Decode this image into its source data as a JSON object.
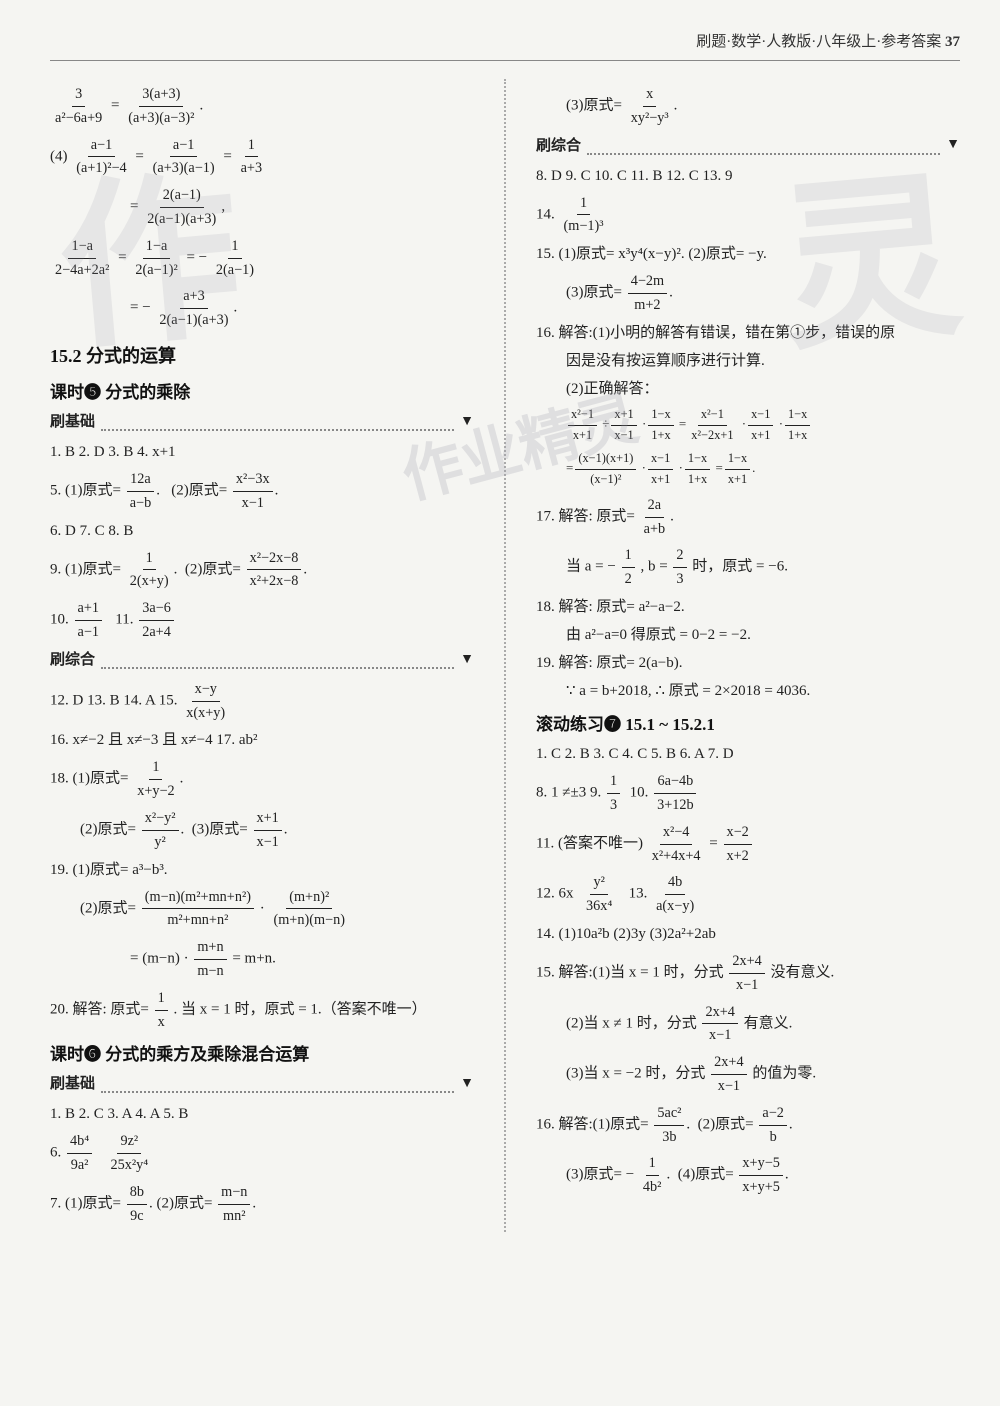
{
  "header": {
    "text": "刷题·数学·人教版·八年级上·参考答案",
    "page": "37"
  },
  "left": {
    "eq1_l_num": "3",
    "eq1_l_den": "a²−6a+9",
    "eq1_r_num": "3(a+3)",
    "eq1_r_den": "(a+3)(a−3)²",
    "q4_label": "(4)",
    "q4a_num": "a−1",
    "q4a_den": "(a+1)²−4",
    "q4b_num": "a−1",
    "q4b_den": "(a+3)(a−1)",
    "q4c_num": "1",
    "q4c_den": "a+3",
    "q4d_num": "2(a−1)",
    "q4d_den": "2(a−1)(a+3)",
    "q4e_lnum": "1−a",
    "q4e_lden": "2−4a+2a²",
    "q4e_mnum": "1−a",
    "q4e_mden": "2(a−1)²",
    "q4e_rnum": "1",
    "q4e_rden": "2(a−1)",
    "q4f_num": "a+3",
    "q4f_den": "2(a−1)(a+3)",
    "sec152": "15.2  分式的运算",
    "keshi5": "课时❺  分式的乘除",
    "shuajichu": "刷基础",
    "row1": "1. B   2. D   3. B   4. x+1",
    "q5_label": "5.",
    "q5_1l": "(1)原式=",
    "q5_1num": "12a",
    "q5_1den": "a−b",
    "q5_2l": "(2)原式=",
    "q5_2num": "x²−3x",
    "q5_2den": "x−1",
    "row2": "6. D   7. C   8. B",
    "q9_label": "9.",
    "q9_1l": "(1)原式=",
    "q9_1num": "1",
    "q9_1den": "2(x+y)",
    "q9_2l": "(2)原式=",
    "q9_2num": "x²−2x−8",
    "q9_2den": "x²+2x−8",
    "q10_label": "10.",
    "q10_num": "a+1",
    "q10_den": "a−1",
    "q11_label": "11.",
    "q11_num": "3a−6",
    "q11_den": "2a+4",
    "shuazonghe": "刷综合",
    "row3_a": "12. D   13. B   14. A   15.",
    "q15_num": "x−y",
    "q15_den": "x(x+y)",
    "row4": "16. x≠−2 且 x≠−3 且 x≠−4   17. ab²",
    "q18_label": "18.",
    "q18_1l": "(1)原式=",
    "q18_1num": "1",
    "q18_1den": "x+y−2",
    "q18_2l": "(2)原式=",
    "q18_2num": "x²−y²",
    "q18_2den": "y²",
    "q18_3l": "(3)原式=",
    "q18_3num": "x+1",
    "q18_3den": "x−1",
    "q19_label": "19.",
    "q19_1": "(1)原式= a³−b³.",
    "q19_2l": "(2)原式=",
    "q19_2anum": "(m−n)(m²+mn+n²)",
    "q19_2aden": "m²+mn+n²",
    "q19_2bnum": "(m+n)²",
    "q19_2bden": "(m+n)(m−n)",
    "q19_3a": "= (m−n) ·",
    "q19_3num": "m+n",
    "q19_3den": "m−n",
    "q19_3b": "= m+n.",
    "q20_label": "20. 解答:",
    "q20_a": "原式=",
    "q20_num": "1",
    "q20_den": "x",
    "q20_b": ". 当 x = 1 时，原式 = 1.（答案不唯一）",
    "keshi6": "课时❻  分式的乘方及乘除混合运算",
    "row5": "1. B   2. C   3. A   4. A   5. B",
    "q6_label": "6.",
    "q6_anum": "4b⁴",
    "q6_aden": "9a²",
    "q6_bnum": "9z²",
    "q6_bden": "25x²y⁴",
    "q7_label": "7.",
    "q7_1l": "(1)原式=",
    "q7_1num": "8b",
    "q7_1den": "9c",
    "q7_2l": "(2)原式=",
    "q7_2num": "m−n",
    "q7_2den": "mn²"
  },
  "right": {
    "q3l": "(3)原式=",
    "q3num": "x",
    "q3den": "xy²−y³",
    "shuazonghe": "刷综合",
    "row1": "8. D   9. C   10. C   11. B   12. C   13. 9",
    "q14_label": "14.",
    "q14_num": "1",
    "q14_den": "(m−1)³",
    "q15_label": "15.",
    "q15_1": "(1)原式= x³y⁴(x−y)².   (2)原式= −y.",
    "q15_3l": "(3)原式=",
    "q15_3num": "4−2m",
    "q15_3den": "m+2",
    "q16a": "16. 解答:(1)小明的解答有错误，错在第①步，错误的原",
    "q16b": "因是没有按运算顺序进行计算.",
    "q16c": "(2)正确解答：",
    "line1_anum": "x²−1",
    "line1_aden": "x+1",
    "line1_bnum": "x+1",
    "line1_bden": "x−1",
    "line1_cnum": "1−x",
    "line1_cden": "1+x",
    "line1_dnum": "x²−1",
    "line1_dden": "x²−2x+1",
    "line1_enum": "x−1",
    "line1_eden": "x+1",
    "line1_fnum": "1−x",
    "line1_fden": "1+x",
    "line2_anum": "(x−1)(x+1)",
    "line2_aden": "(x−1)²",
    "line2_bnum": "x−1",
    "line2_bden": "x+1",
    "line2_cnum": "1−x",
    "line2_cden": "1+x",
    "line2_dnum": "1−x",
    "line2_dden": "x+1",
    "q17a": "17. 解答: 原式=",
    "q17num": "2a",
    "q17den": "a+b",
    "q17b_a": "当 a = −",
    "q17b_num1": "1",
    "q17b_den1": "2",
    "q17b_b": ", b =",
    "q17b_num2": "2",
    "q17b_den2": "3",
    "q17b_c": "时，原式 = −6.",
    "q18": "18. 解答: 原式= a²−a−2.",
    "q18b": "由 a²−a=0 得原式 = 0−2 = −2.",
    "q19": "19. 解答: 原式= 2(a−b).",
    "q19b": "∵ a = b+2018, ∴ 原式 = 2×2018 = 4036.",
    "gundong": "滚动练习❼     15.1 ~ 15.2.1",
    "row2": "1. C   2. B   3. C   4. C   5. B   6. A   7. D",
    "row3a": "8. 1   ≠±3   9.",
    "r3_num1": "1",
    "r3_den1": "3",
    "row3b": "10.",
    "r3_num2": "6a−4b",
    "r3_den2": "3+12b",
    "q11_label": "11. (答案不唯一)",
    "q11_anum": "x²−4",
    "q11_aden": "x²+4x+4",
    "q11_bnum": "x−2",
    "q11_bden": "x+2",
    "q12a": "12.  6x",
    "q12_num": "y²",
    "q12_den": "36x⁴",
    "q13a": "13.",
    "q13_num": "4b",
    "q13_den": "a(x−y)",
    "q14_2": "14. (1)10a²b   (2)3y   (3)2a²+2ab",
    "q15_2a": "15. 解答:(1)当 x = 1 时，分式",
    "q15_2num": "2x+4",
    "q15_2den": "x−1",
    "q15_2b": "没有意义.",
    "q15_3a": "(2)当 x ≠ 1 时，分式",
    "q15_3b2": "有意义.",
    "q15_4a": "(3)当 x = −2 时，分式",
    "q15_4b": "的值为零.",
    "q16_2a": "16. 解答:(1)原式=",
    "q16_2num1": "5ac²",
    "q16_2den1": "3b",
    "q16_2b": "(2)原式=",
    "q16_2num2": "a−2",
    "q16_2den2": "b",
    "q16_3a": "(3)原式= −",
    "q16_3num1": "1",
    "q16_3den1": "4b²",
    "q16_3b": "(4)原式=",
    "q16_3num2": "x+y−5",
    "q16_3den2": "x+y+5"
  },
  "wm1": "作",
  "wm2": "灵",
  "wm3": "作业精灵"
}
